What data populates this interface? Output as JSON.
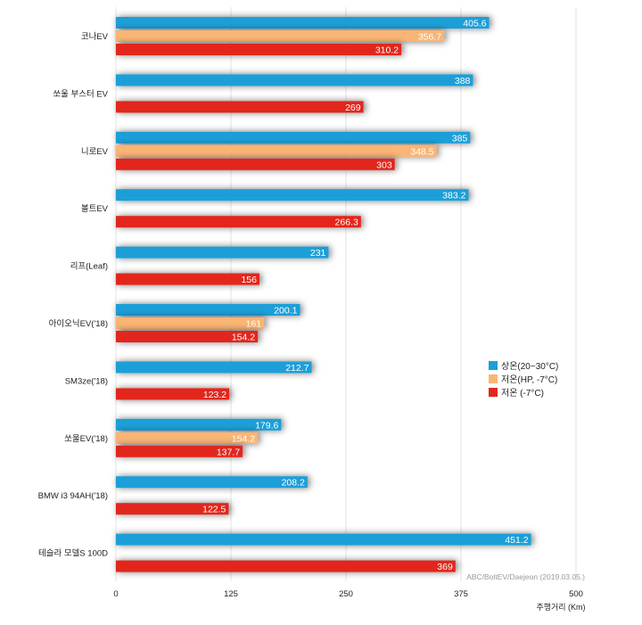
{
  "chart_data": {
    "type": "bar",
    "orientation": "horizontal",
    "categories": [
      "코나EV",
      "쏘울 부스터 EV",
      "니로EV",
      "볼트EV",
      "리프(Leaf)",
      "아이오닉EV('18)",
      "SM3ze('18)",
      "쏘울EV('18)",
      "BMW i3 94AH('18)",
      "테슬라 모델S 100D"
    ],
    "series": [
      {
        "name": "상온(20~30°C)",
        "color": "#1a9fd8",
        "values": [
          405.6,
          388,
          385,
          383.2,
          231,
          200.1,
          212.7,
          179.6,
          208.2,
          451.2
        ]
      },
      {
        "name": "저온(HP, -7°C)",
        "color": "#f9b574",
        "values": [
          356.7,
          null,
          348.5,
          null,
          null,
          161,
          null,
          154.2,
          null,
          null
        ]
      },
      {
        "name": "저온 (-7°C)",
        "color": "#e2281c",
        "values": [
          310.2,
          269,
          303,
          266.3,
          156,
          154.2,
          123.2,
          137.7,
          122.5,
          369
        ]
      }
    ],
    "xlim": [
      0,
      500
    ],
    "xticks": [
      0,
      125,
      250,
      375,
      500
    ],
    "xlabel": "주행거리 (Km)",
    "ylabel": "",
    "title": "",
    "grid": true,
    "legend_position": "right-middle",
    "source_note": "ABC/BoltEV/Daejeon (2019.03.05.)"
  }
}
